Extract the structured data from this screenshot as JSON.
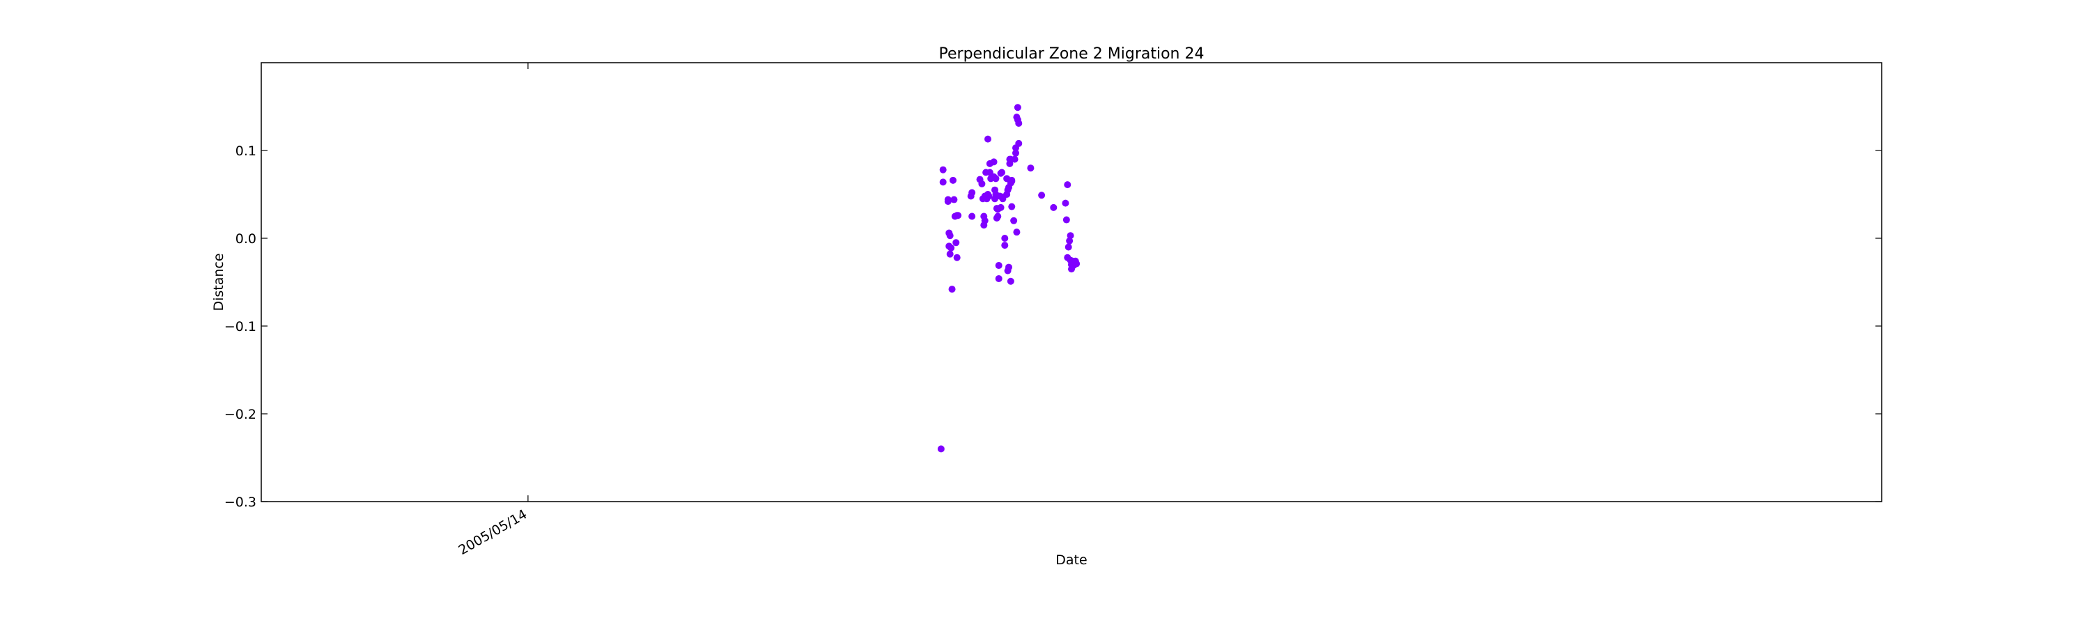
{
  "chart_data": {
    "type": "scatter",
    "title": "Perpendicular Zone 2 Migration 24",
    "xlabel": "Date",
    "ylabel": "Distance",
    "ylim": [
      -0.3,
      0.2
    ],
    "yticks": [
      -0.3,
      -0.2,
      -0.1,
      0.0,
      0.1
    ],
    "ytick_labels": [
      "−0.3",
      "−0.2",
      "−0.1",
      "0.0",
      "0.1"
    ],
    "xticks": [
      "2005/05/14"
    ],
    "xlim": [
      "2004/08/19",
      "2009/02/02"
    ],
    "x_tick_rotation_deg": 30,
    "grid": false,
    "marker_color": "#7f00ff",
    "series": [
      {
        "x": [
          "2006/07/03",
          "2006/07/05",
          "2006/07/05",
          "2006/07/10",
          "2006/07/10",
          "2006/07/11",
          "2006/07/11",
          "2006/07/12",
          "2006/07/12",
          "2006/07/13",
          "2006/07/14",
          "2006/07/15",
          "2006/07/16",
          "2006/07/17",
          "2006/07/18",
          "2006/07/19",
          "2006/07/19",
          "2006/07/20",
          "2006/08/02",
          "2006/08/03",
          "2006/08/03",
          "2006/08/11",
          "2006/08/13",
          "2006/08/14",
          "2006/08/15",
          "2006/08/15",
          "2006/08/16",
          "2006/08/16",
          "2006/08/17",
          "2006/08/18",
          "2006/08/19",
          "2006/08/19",
          "2006/08/20",
          "2006/08/21",
          "2006/08/21",
          "2006/08/22",
          "2006/08/25",
          "2006/08/25",
          "2006/08/26",
          "2006/08/26",
          "2006/08/27",
          "2006/08/27",
          "2006/08/28",
          "2006/08/28",
          "2006/08/29",
          "2006/08/29",
          "2006/08/30",
          "2006/08/30",
          "2006/08/31",
          "2006/09/01",
          "2006/09/01",
          "2006/09/02",
          "2006/09/02",
          "2006/09/03",
          "2006/09/03",
          "2006/09/05",
          "2006/09/05",
          "2006/09/07",
          "2006/09/07",
          "2006/09/08",
          "2006/09/08",
          "2006/09/09",
          "2006/09/09",
          "2006/09/10",
          "2006/09/10",
          "2006/09/11",
          "2006/09/11",
          "2006/09/11",
          "2006/09/12",
          "2006/09/12",
          "2006/09/12",
          "2006/09/14",
          "2006/09/15",
          "2006/09/16",
          "2006/09/16",
          "2006/09/17",
          "2006/09/17",
          "2006/09/18",
          "2006/09/18",
          "2006/09/19",
          "2006/09/19",
          "2006/10/01",
          "2006/10/12",
          "2006/10/24",
          "2006/11/05",
          "2006/11/06",
          "2006/11/07",
          "2006/11/07",
          "2006/11/08",
          "2006/11/09",
          "2006/11/10",
          "2006/11/10",
          "2006/11/11",
          "2006/11/11",
          "2006/11/12",
          "2006/11/12",
          "2006/11/13",
          "2006/11/13",
          "2006/11/14",
          "2006/11/14",
          "2006/11/15",
          "2006/11/16"
        ],
        "y": [
          -0.24,
          0.064,
          0.078,
          0.044,
          0.042,
          0.006,
          -0.009,
          0.003,
          -0.018,
          -0.011,
          -0.058,
          0.066,
          0.044,
          0.025,
          -0.005,
          -0.022,
          0.026,
          0.026,
          0.048,
          0.052,
          0.025,
          0.067,
          0.062,
          0.045,
          0.025,
          0.015,
          0.048,
          0.02,
          0.075,
          0.045,
          0.113,
          0.05,
          0.048,
          0.085,
          0.075,
          0.068,
          0.087,
          0.07,
          0.055,
          0.045,
          0.068,
          0.05,
          0.023,
          0.034,
          0.033,
          0.025,
          -0.031,
          -0.046,
          0.048,
          0.035,
          0.074,
          0.075,
          0.047,
          0.045,
          0.047,
          0.0,
          -0.008,
          0.05,
          0.068,
          0.055,
          -0.037,
          0.058,
          -0.033,
          0.09,
          0.085,
          0.063,
          -0.049,
          0.09,
          0.036,
          0.065,
          0.066,
          0.02,
          0.09,
          0.097,
          0.103,
          0.007,
          0.138,
          0.135,
          0.149,
          0.131,
          0.108,
          0.08,
          0.049,
          0.035,
          0.04,
          0.021,
          0.061,
          -0.022,
          -0.01,
          -0.003,
          0.003,
          -0.025,
          -0.035,
          -0.03,
          -0.026,
          -0.028,
          -0.031,
          -0.027,
          -0.03,
          -0.028,
          -0.026,
          -0.029
        ]
      }
    ]
  }
}
